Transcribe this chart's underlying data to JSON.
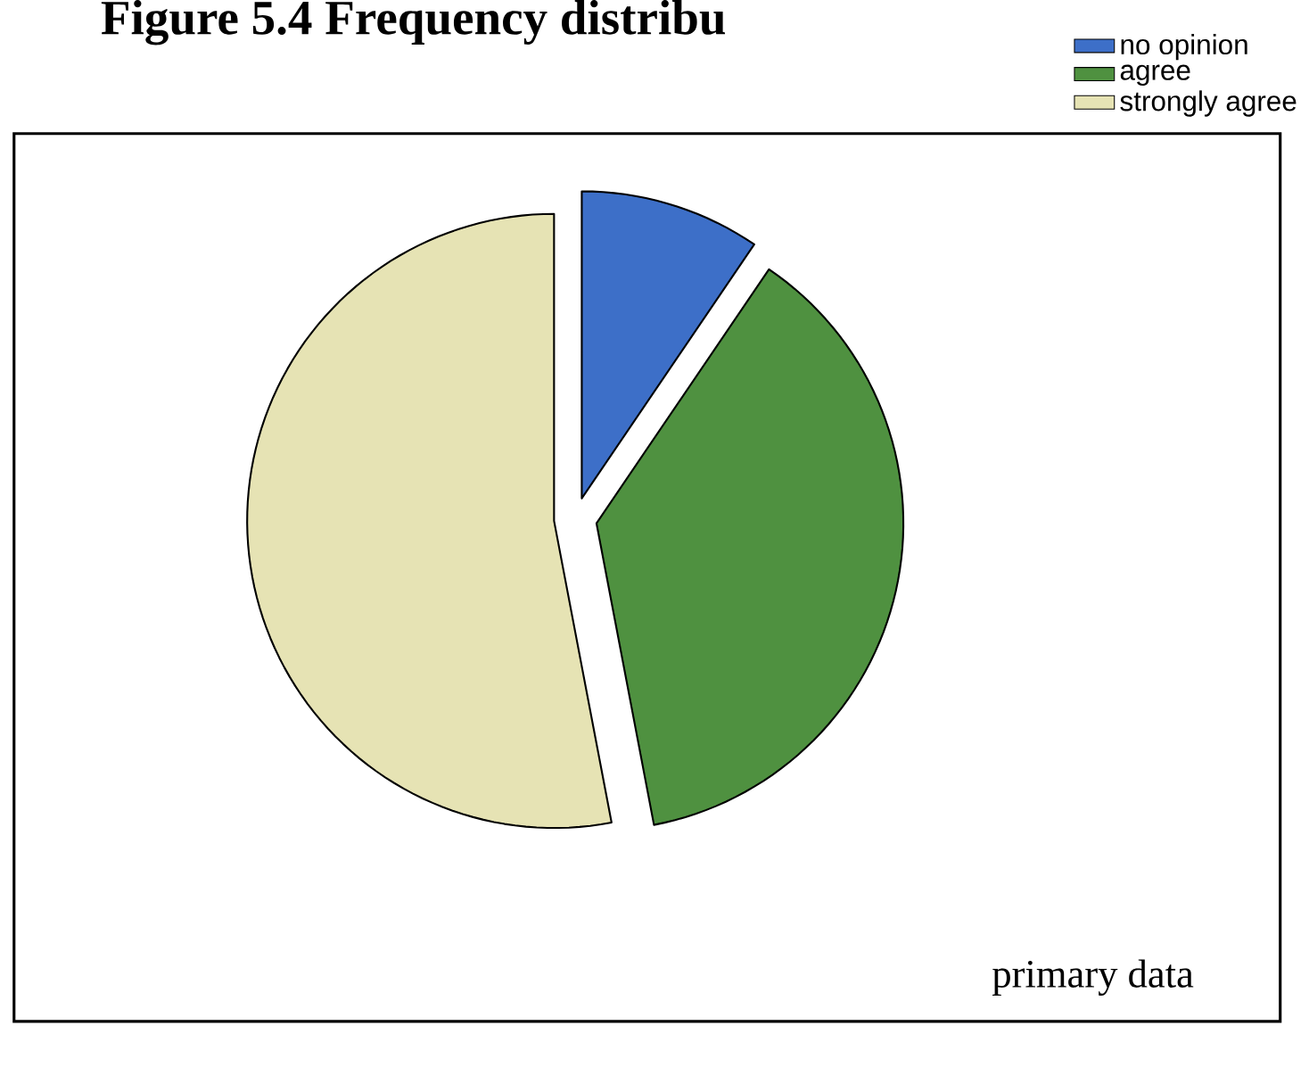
{
  "chart_data": {
    "type": "pie",
    "title": "Figure 5.4 Frequency distribu",
    "categories": [
      "no opinion",
      "agree",
      "strongly agree"
    ],
    "values": [
      9.5,
      37.5,
      53
    ],
    "colors": [
      "#3d6fc8",
      "#4f9140",
      "#e6e3b4"
    ],
    "legend": "top right",
    "annotations": [
      "primary data"
    ]
  }
}
